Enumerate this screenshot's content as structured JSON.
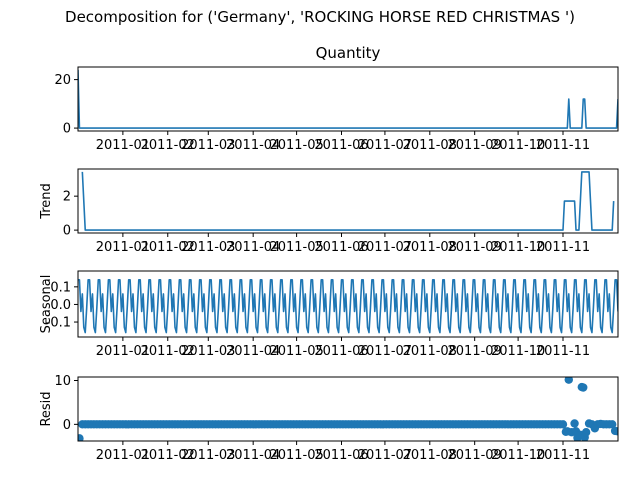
{
  "figure": {
    "title": "Decomposition for ('Germany', 'ROCKING HORSE RED CHRISTMAS ')",
    "line_color": "#1f77b4"
  },
  "chart_data": [
    {
      "type": "line",
      "title": "Quantity",
      "ylabel": "",
      "ylim": [
        -1.2,
        25.2
      ],
      "yticks": [
        0,
        20
      ],
      "xticks": [
        "2011-01",
        "2011-02",
        "2011-03",
        "2011-04",
        "2011-05",
        "2011-06",
        "2011-07",
        "2011-08",
        "2011-09",
        "2011-10",
        "2011-11"
      ],
      "xlim": [
        "2010-12-01",
        "2011-12-09"
      ],
      "series": [
        {
          "x": [
            "2010-12-01",
            "2010-12-02",
            "2011-11-04",
            "2011-11-05",
            "2011-11-06",
            "2011-11-14",
            "2011-11-15",
            "2011-11-16",
            "2011-11-17",
            "2011-12-08",
            "2011-12-09"
          ],
          "values": [
            24,
            0,
            0,
            12,
            0,
            0,
            12,
            12,
            0,
            0,
            12
          ]
        }
      ]
    },
    {
      "type": "line",
      "title": "",
      "ylabel": "Trend",
      "ylim": [
        -0.17,
        3.6
      ],
      "yticks": [
        0,
        2
      ],
      "xticks": [
        "2011-01",
        "2011-02",
        "2011-03",
        "2011-04",
        "2011-05",
        "2011-06",
        "2011-07",
        "2011-08",
        "2011-09",
        "2011-10",
        "2011-11"
      ],
      "xlim": [
        "2010-12-01",
        "2011-12-09"
      ],
      "series": [
        {
          "x": [
            "2010-12-04",
            "2010-12-06",
            "2011-11-01",
            "2011-11-02",
            "2011-11-09",
            "2011-11-10",
            "2011-11-12",
            "2011-11-14",
            "2011-11-19",
            "2011-11-21",
            "2011-12-05",
            "2011-12-06"
          ],
          "values": [
            3.43,
            0,
            0,
            1.71,
            1.71,
            0,
            0,
            3.43,
            3.43,
            0,
            0,
            1.71
          ]
        }
      ]
    },
    {
      "type": "line",
      "title": "",
      "ylabel": "Seasonal",
      "ylim": [
        -0.185,
        0.19
      ],
      "yticks": [
        -0.1,
        0.0,
        0.1
      ],
      "xticks": [
        "2011-01",
        "2011-02",
        "2011-03",
        "2011-04",
        "2011-05",
        "2011-06",
        "2011-07",
        "2011-08",
        "2011-09",
        "2011-10",
        "2011-11"
      ],
      "xlim": [
        "2010-12-01",
        "2011-12-09"
      ],
      "series": [
        {
          "x_start": "2010-12-01",
          "period_days": 7,
          "pattern": [
            0.14,
            0.14,
            -0.04,
            0.06,
            -0.13,
            -0.16,
            -0.02
          ]
        }
      ]
    },
    {
      "type": "scatter",
      "title": "",
      "ylabel": "Resid",
      "ylim": [
        -3.8,
        10.8
      ],
      "yticks": [
        0,
        10
      ],
      "xticks": [
        "2011-01",
        "2011-02",
        "2011-03",
        "2011-04",
        "2011-05",
        "2011-06",
        "2011-07",
        "2011-08",
        "2011-09",
        "2011-10",
        "2011-11"
      ],
      "xlim": [
        "2010-12-01",
        "2011-12-09"
      ],
      "series": [
        {
          "x_start": "2010-12-04",
          "x_end": "2011-12-06",
          "step_days": 2,
          "baseline": 0,
          "points": [
            {
              "x": "2010-12-02",
              "value": -3.2
            },
            {
              "x": "2011-11-03",
              "value": -1.7
            },
            {
              "x": "2011-11-04",
              "value": -1.6
            },
            {
              "x": "2011-11-05",
              "value": 10.2
            },
            {
              "x": "2011-11-07",
              "value": -1.8
            },
            {
              "x": "2011-11-09",
              "value": 0.2
            },
            {
              "x": "2011-11-10",
              "value": -1.6
            },
            {
              "x": "2011-11-11",
              "value": -3.1
            },
            {
              "x": "2011-11-13",
              "value": -2.4
            },
            {
              "x": "2011-11-14",
              "value": 8.5
            },
            {
              "x": "2011-11-15",
              "value": 8.4
            },
            {
              "x": "2011-11-16",
              "value": -3.0
            },
            {
              "x": "2011-11-17",
              "value": -1.8
            },
            {
              "x": "2011-11-19",
              "value": 0.2
            },
            {
              "x": "2011-11-23",
              "value": -0.9
            },
            {
              "x": "2011-11-27",
              "value": 0.1
            },
            {
              "x": "2011-12-07",
              "value": -1.5
            },
            {
              "x": "2011-12-09",
              "value": -1.6
            }
          ]
        }
      ]
    }
  ]
}
